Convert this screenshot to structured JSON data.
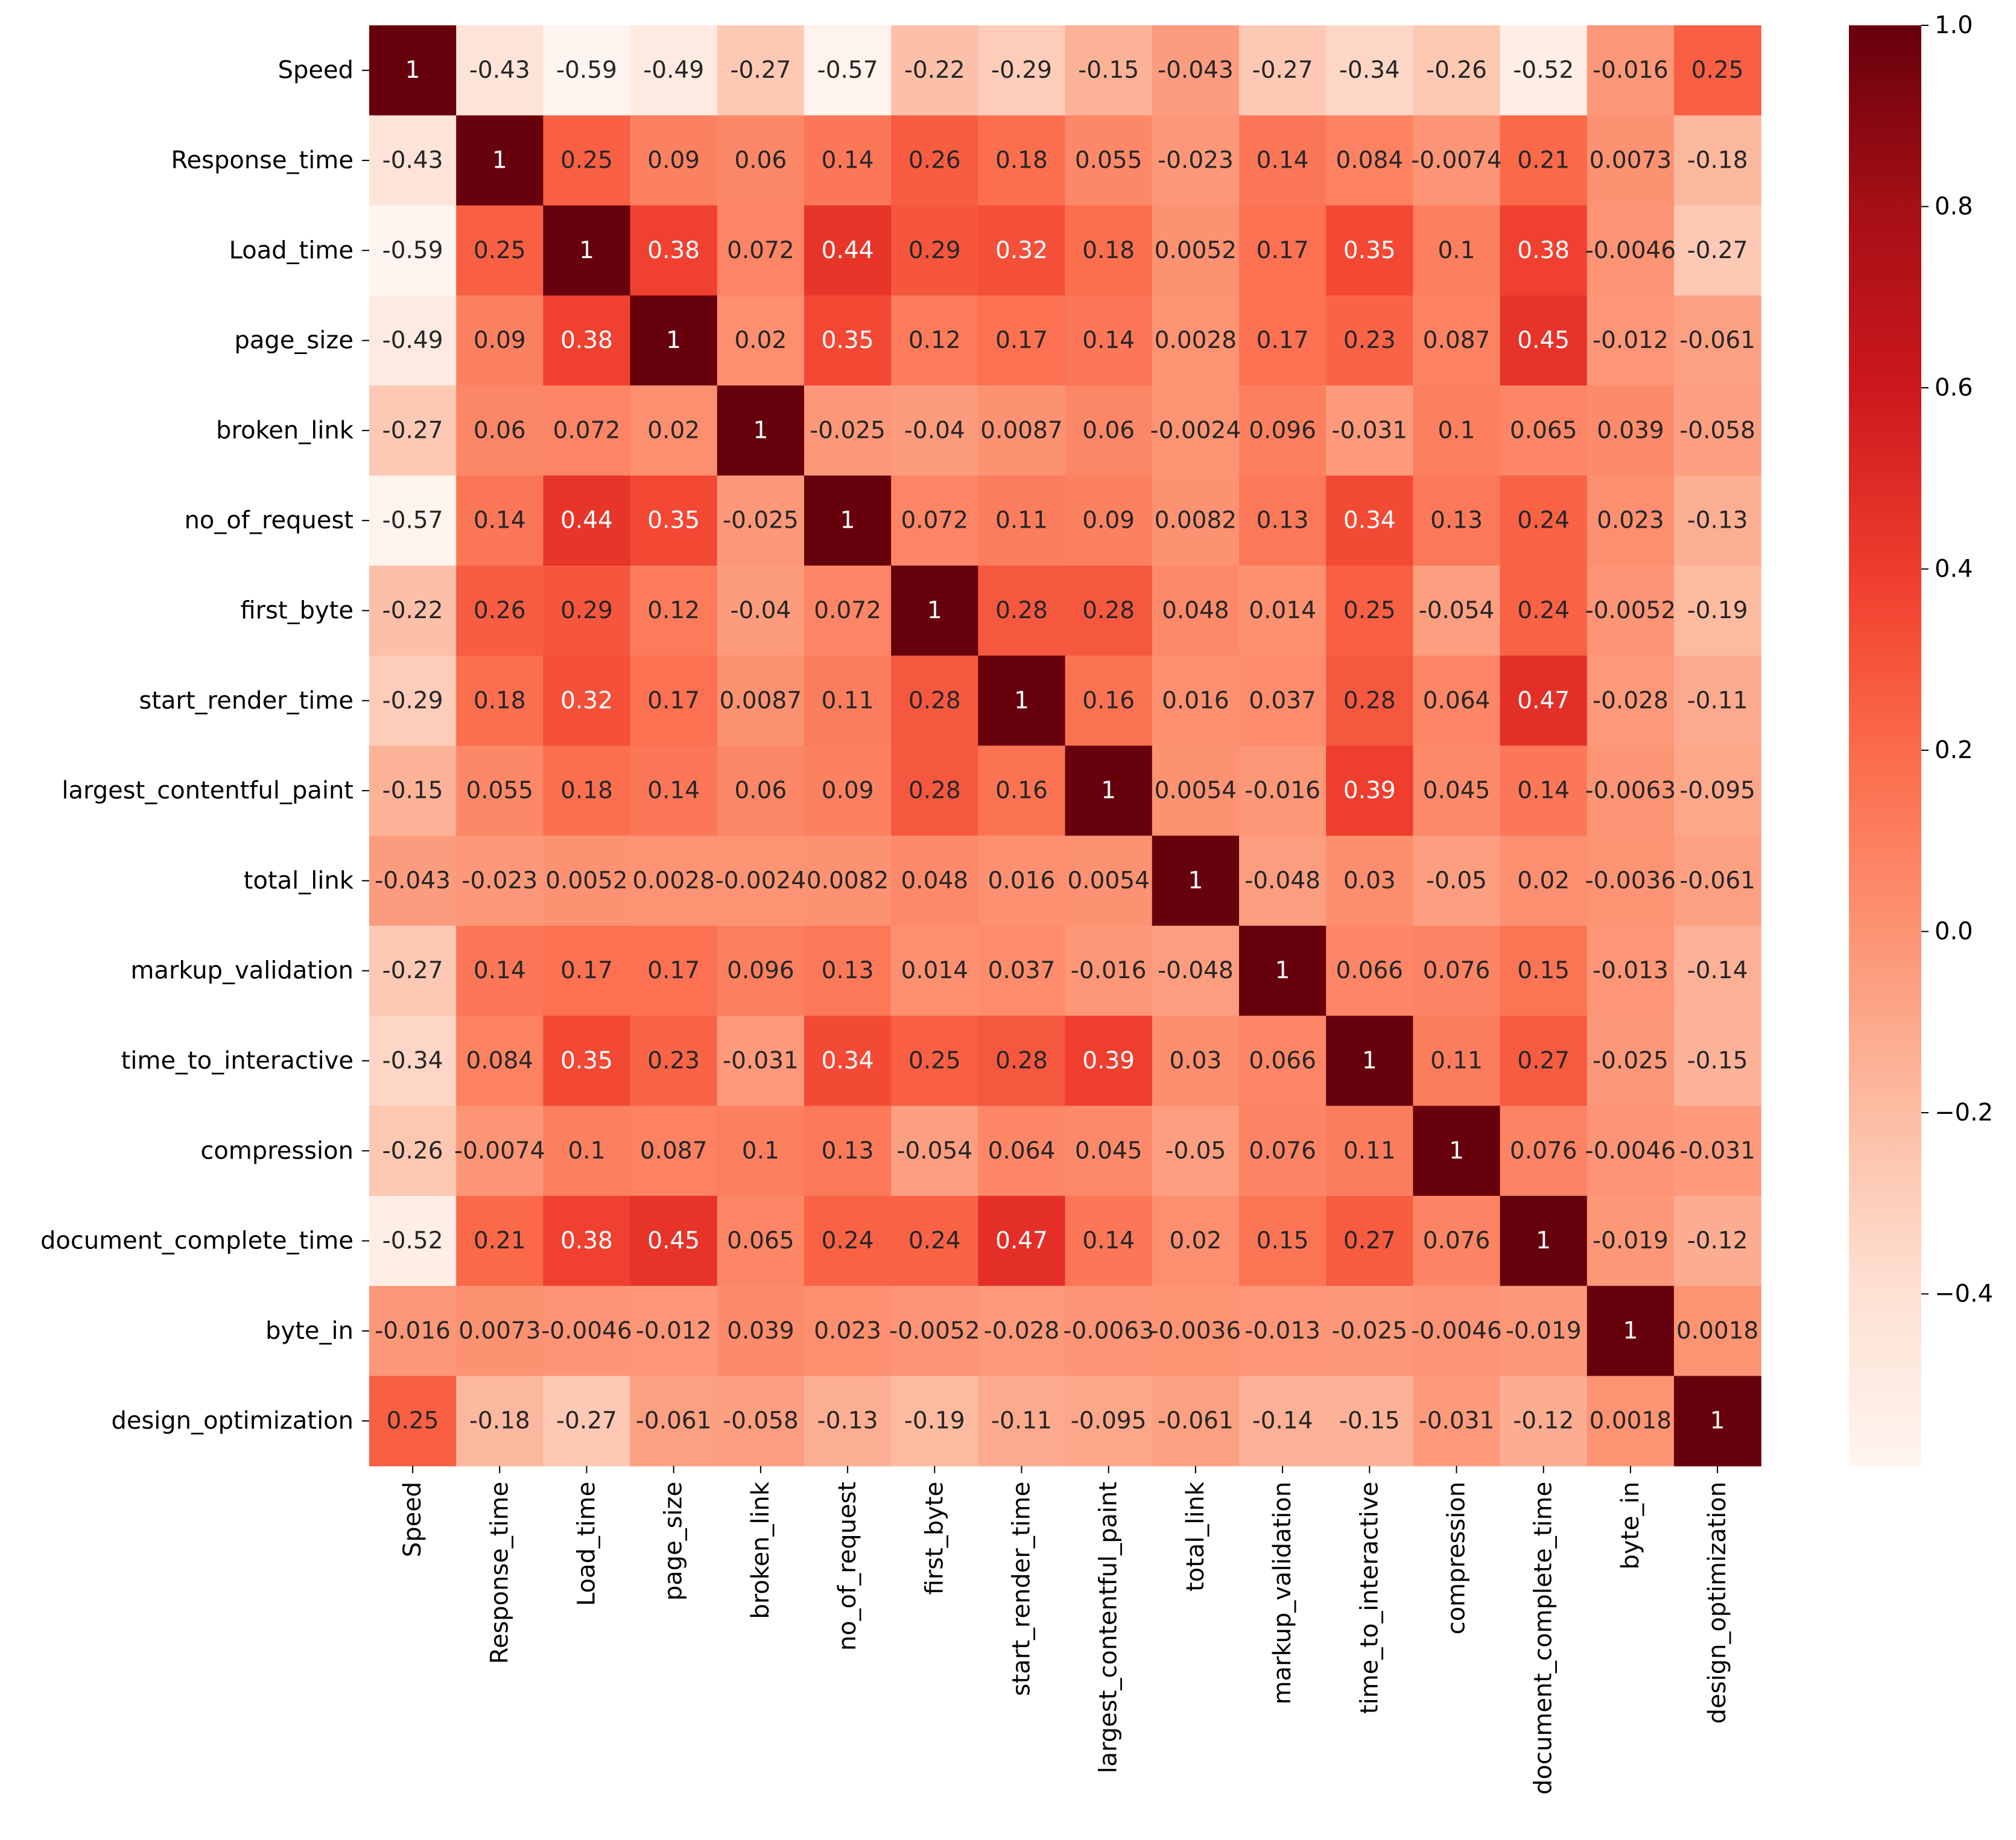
{
  "chart_data": {
    "type": "heatmap",
    "title": "",
    "xlabel": "",
    "ylabel": "",
    "colormap": "Reds",
    "color_range": [
      -0.59,
      1.0
    ],
    "variables": [
      "Speed",
      "Response_time",
      "Load_time",
      "page_size",
      "broken_link",
      "no_of_request",
      "first_byte",
      "start_render_time",
      "largest_contentful_paint",
      "total_link",
      "markup_validation",
      "time_to_interactive",
      "compression",
      "document_complete_time",
      "byte_in",
      "design_optimization"
    ],
    "matrix": [
      [
        1,
        -0.43,
        -0.59,
        -0.49,
        -0.27,
        -0.57,
        -0.22,
        -0.29,
        -0.15,
        -0.043,
        -0.27,
        -0.34,
        -0.26,
        -0.52,
        -0.016,
        0.25
      ],
      [
        -0.43,
        1,
        0.25,
        0.09,
        0.06,
        0.14,
        0.26,
        0.18,
        0.055,
        -0.023,
        0.14,
        0.084,
        -0.0074,
        0.21,
        0.0073,
        -0.18
      ],
      [
        -0.59,
        0.25,
        1,
        0.38,
        0.072,
        0.44,
        0.29,
        0.32,
        0.18,
        0.0052,
        0.17,
        0.35,
        0.1,
        0.38,
        -0.0046,
        -0.27
      ],
      [
        -0.49,
        0.09,
        0.38,
        1,
        0.02,
        0.35,
        0.12,
        0.17,
        0.14,
        0.0028,
        0.17,
        0.23,
        0.087,
        0.45,
        -0.012,
        -0.061
      ],
      [
        -0.27,
        0.06,
        0.072,
        0.02,
        1,
        -0.025,
        -0.04,
        0.0087,
        0.06,
        -0.0024,
        0.096,
        -0.031,
        0.1,
        0.065,
        0.039,
        -0.058
      ],
      [
        -0.57,
        0.14,
        0.44,
        0.35,
        -0.025,
        1,
        0.072,
        0.11,
        0.09,
        0.0082,
        0.13,
        0.34,
        0.13,
        0.24,
        0.023,
        -0.13
      ],
      [
        -0.22,
        0.26,
        0.29,
        0.12,
        -0.04,
        0.072,
        1,
        0.28,
        0.28,
        0.048,
        0.014,
        0.25,
        -0.054,
        0.24,
        -0.0052,
        -0.19
      ],
      [
        -0.29,
        0.18,
        0.32,
        0.17,
        0.0087,
        0.11,
        0.28,
        1,
        0.16,
        0.016,
        0.037,
        0.28,
        0.064,
        0.47,
        -0.028,
        -0.11
      ],
      [
        -0.15,
        0.055,
        0.18,
        0.14,
        0.06,
        0.09,
        0.28,
        0.16,
        1,
        0.0054,
        -0.016,
        0.39,
        0.045,
        0.14,
        -0.0063,
        -0.095
      ],
      [
        -0.043,
        -0.023,
        0.0052,
        0.0028,
        -0.0024,
        0.0082,
        0.048,
        0.016,
        0.0054,
        1,
        -0.048,
        0.03,
        -0.05,
        0.02,
        -0.0036,
        -0.061
      ],
      [
        -0.27,
        0.14,
        0.17,
        0.17,
        0.096,
        0.13,
        0.014,
        0.037,
        -0.016,
        -0.048,
        1,
        0.066,
        0.076,
        0.15,
        -0.013,
        -0.14
      ],
      [
        -0.34,
        0.084,
        0.35,
        0.23,
        -0.031,
        0.34,
        0.25,
        0.28,
        0.39,
        0.03,
        0.066,
        1,
        0.11,
        0.27,
        -0.025,
        -0.15
      ],
      [
        -0.26,
        -0.0074,
        0.1,
        0.087,
        0.1,
        0.13,
        -0.054,
        0.064,
        0.045,
        -0.05,
        0.076,
        0.11,
        1,
        0.076,
        -0.0046,
        -0.031
      ],
      [
        -0.52,
        0.21,
        0.38,
        0.45,
        0.065,
        0.24,
        0.24,
        0.47,
        0.14,
        0.02,
        0.15,
        0.27,
        0.076,
        1,
        -0.019,
        -0.12
      ],
      [
        -0.016,
        0.0073,
        -0.0046,
        -0.012,
        0.039,
        0.023,
        -0.0052,
        -0.028,
        -0.0063,
        -0.0036,
        -0.013,
        -0.025,
        -0.0046,
        -0.019,
        1,
        0.0018
      ],
      [
        0.25,
        -0.18,
        -0.27,
        -0.061,
        -0.058,
        -0.13,
        -0.19,
        -0.11,
        -0.095,
        -0.061,
        -0.14,
        -0.15,
        -0.031,
        -0.12,
        0.0018,
        1
      ]
    ],
    "colorbar": {
      "ticks": [
        1.0,
        0.8,
        0.6,
        0.4,
        0.2,
        0.0,
        -0.2,
        -0.4
      ],
      "tick_labels": [
        "1.0",
        "0.8",
        "0.6",
        "0.4",
        "0.2",
        "0.0",
        "−0.2",
        "−0.4"
      ]
    }
  }
}
